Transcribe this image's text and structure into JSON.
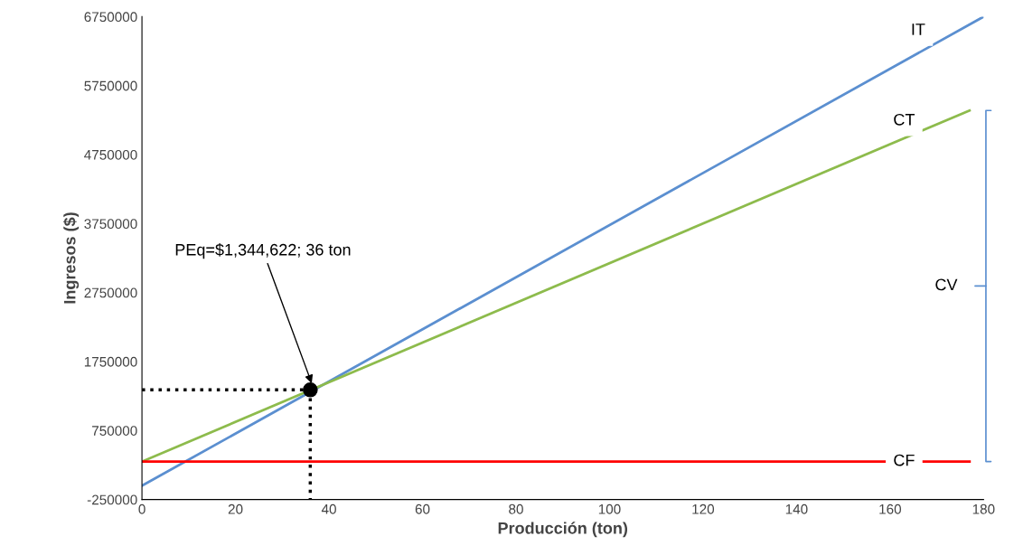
{
  "chart_data": {
    "type": "line",
    "xlabel": "Producción (ton)",
    "ylabel": "Ingresos ($)",
    "xlim": [
      0,
      180
    ],
    "xticks": [
      0,
      20,
      40,
      60,
      80,
      100,
      120,
      140,
      160,
      180
    ],
    "ylim": [
      -250000,
      6750000
    ],
    "yticks": [
      -250000,
      750000,
      1750000,
      2750000,
      3750000,
      4750000,
      5750000,
      6750000
    ],
    "grid": false,
    "series": [
      {
        "name": "IT",
        "color": "#5b8fd0",
        "x": [
          0,
          180
        ],
        "values": [
          -50000,
          6750000
        ]
      },
      {
        "name": "CT",
        "color": "#8dbb4c",
        "x": [
          0,
          177
        ],
        "values": [
          300000,
          5390000
        ]
      },
      {
        "name": "CF",
        "color": "#ff0000",
        "x": [
          0,
          177
        ],
        "values": [
          300000,
          300000
        ]
      },
      {
        "type": "line",
        "line_style": "dotted",
        "color": "#000000",
        "x": [
          0,
          36
        ],
        "values": [
          1340000,
          1340000
        ]
      },
      {
        "type": "line",
        "line_style": "dotted",
        "color": "#000000",
        "x": [
          36,
          36
        ],
        "values": [
          1340000,
          -250000
        ]
      },
      {
        "type": "scatter",
        "marker": "circle",
        "color": "#000000",
        "x": [
          36
        ],
        "values": [
          1340000
        ]
      }
    ],
    "annotations": [
      {
        "text": "PEq=$1,344,622; 36 ton",
        "x": 36,
        "y": 1340000
      },
      "CV"
    ]
  }
}
